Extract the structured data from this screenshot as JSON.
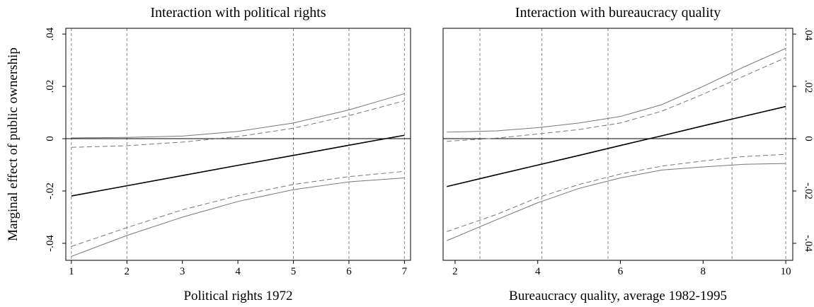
{
  "chart_data": [
    {
      "type": "line",
      "title": "Interaction with political rights",
      "x_label": "Political rights 1972",
      "y_label": "Marginal effect of public ownership",
      "yaxis_side": "left",
      "x": [
        1,
        2,
        3,
        4,
        5,
        6,
        7
      ],
      "series": [
        {
          "color": "#000000",
          "style": "solid",
          "values": [
            -0.0219,
            -0.018,
            -0.0141,
            -0.0102,
            -0.0064,
            -0.0025,
            0.0013
          ]
        },
        {
          "color": "#777777",
          "style": "solid",
          "values": [
            0.0003,
            0.0005,
            0.001,
            0.0028,
            0.006,
            0.011,
            0.0172
          ]
        },
        {
          "color": "#777777",
          "style": "dashed",
          "values": [
            -0.0033,
            -0.0027,
            -0.0013,
            0.0008,
            0.004,
            0.0088,
            0.0145
          ]
        },
        {
          "color": "#777777",
          "style": "dashed",
          "values": [
            -0.0412,
            -0.034,
            -0.0272,
            -0.0218,
            -0.0175,
            -0.0145,
            -0.0125
          ]
        },
        {
          "color": "#777777",
          "style": "solid",
          "values": [
            -0.045,
            -0.037,
            -0.03,
            -0.024,
            -0.0195,
            -0.0165,
            -0.015
          ]
        }
      ],
      "reference_x": [
        1,
        2,
        5,
        6,
        7
      ],
      "reference_y": 0,
      "xlim": [
        0.9,
        7.11
      ],
      "ylim": [
        -0.0465,
        0.0422
      ],
      "xticks": [
        1,
        2,
        3,
        4,
        5,
        6,
        7
      ],
      "yticks": [
        {
          "value": -0.04,
          "label": "-.04"
        },
        {
          "value": -0.02,
          "label": "-.02"
        },
        0,
        {
          "value": 0.02,
          "label": ".02"
        },
        {
          "value": 0.04,
          "label": ".04"
        }
      ]
    },
    {
      "type": "line",
      "title": "Interaction with bureaucracy quality",
      "x_label": "Bureaucracy quality, average 1982-1995",
      "yaxis_side": "right",
      "x": [
        1.8,
        3,
        4,
        5,
        6,
        7,
        8,
        9,
        10
      ],
      "series": [
        {
          "color": "#000000",
          "style": "solid",
          "values": [
            -0.0183,
            -0.0138,
            -0.0101,
            -0.0064,
            -0.0026,
            0.0011,
            0.0049,
            0.0086,
            0.0123
          ]
        },
        {
          "color": "#777777",
          "style": "solid",
          "values": [
            0.0025,
            0.003,
            0.0042,
            0.006,
            0.0085,
            0.013,
            0.02,
            0.0275,
            0.0345
          ]
        },
        {
          "color": "#777777",
          "style": "dashed",
          "values": [
            -0.001,
            0.0002,
            0.0018,
            0.0035,
            0.006,
            0.0105,
            0.017,
            0.024,
            0.031
          ]
        },
        {
          "color": "#777777",
          "style": "dashed",
          "values": [
            -0.0355,
            -0.029,
            -0.0225,
            -0.0175,
            -0.0135,
            -0.0105,
            -0.0085,
            -0.0068,
            -0.006
          ]
        },
        {
          "color": "#777777",
          "style": "solid",
          "values": [
            -0.039,
            -0.031,
            -0.0245,
            -0.019,
            -0.015,
            -0.012,
            -0.0108,
            -0.0098,
            -0.0095
          ]
        }
      ],
      "reference_x": [
        2.6,
        4.1,
        5.7,
        8.7,
        10
      ],
      "reference_y": 0,
      "xlim": [
        1.71,
        10.17
      ],
      "ylim": [
        -0.0465,
        0.0422
      ],
      "xticks": [
        2,
        4,
        6,
        8,
        10
      ],
      "yticks": [
        {
          "value": -0.04,
          "label": "-.04"
        },
        {
          "value": -0.02,
          "label": "-.02"
        },
        0,
        {
          "value": 0.02,
          "label": ".02"
        },
        {
          "value": 0.04,
          "label": ".04"
        }
      ]
    }
  ]
}
